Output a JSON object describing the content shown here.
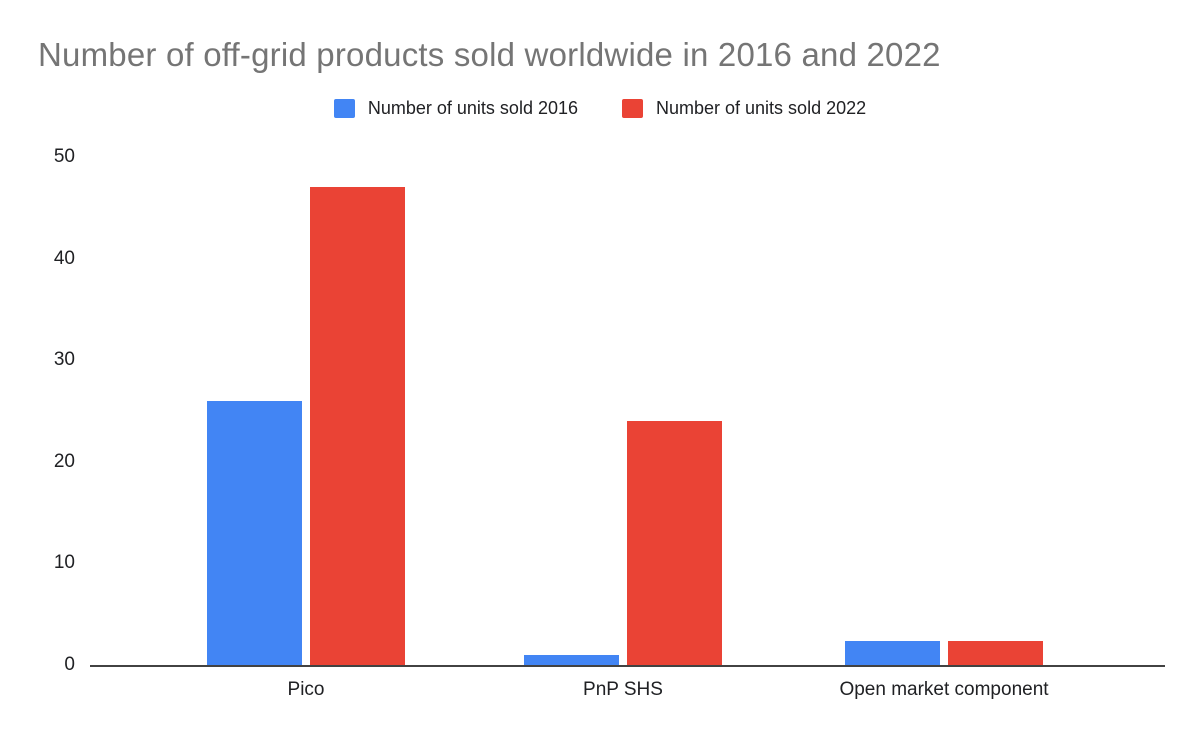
{
  "chart_data": {
    "type": "bar",
    "title": "Number of off-grid products sold worldwide in 2016 and 2022",
    "categories": [
      "Pico",
      "PnP SHS",
      "Open market component"
    ],
    "series": [
      {
        "name": "Number of units sold 2016",
        "color": "#4285F4",
        "values": [
          26,
          1,
          2.4
        ]
      },
      {
        "name": "Number of units sold 2022",
        "color": "#EA4335",
        "values": [
          47,
          24,
          2.4
        ]
      }
    ],
    "xlabel": "",
    "ylabel": "",
    "ylim": [
      0,
      50
    ],
    "yticks": [
      0,
      10,
      20,
      30,
      40,
      50
    ],
    "grid": false,
    "legend_position": "top"
  },
  "colors": {
    "background": "#ffffff",
    "title_text": "#757575",
    "axis_text": "#202124",
    "baseline": "#424242",
    "series_2016": "#4285F4",
    "series_2022": "#EA4335"
  }
}
